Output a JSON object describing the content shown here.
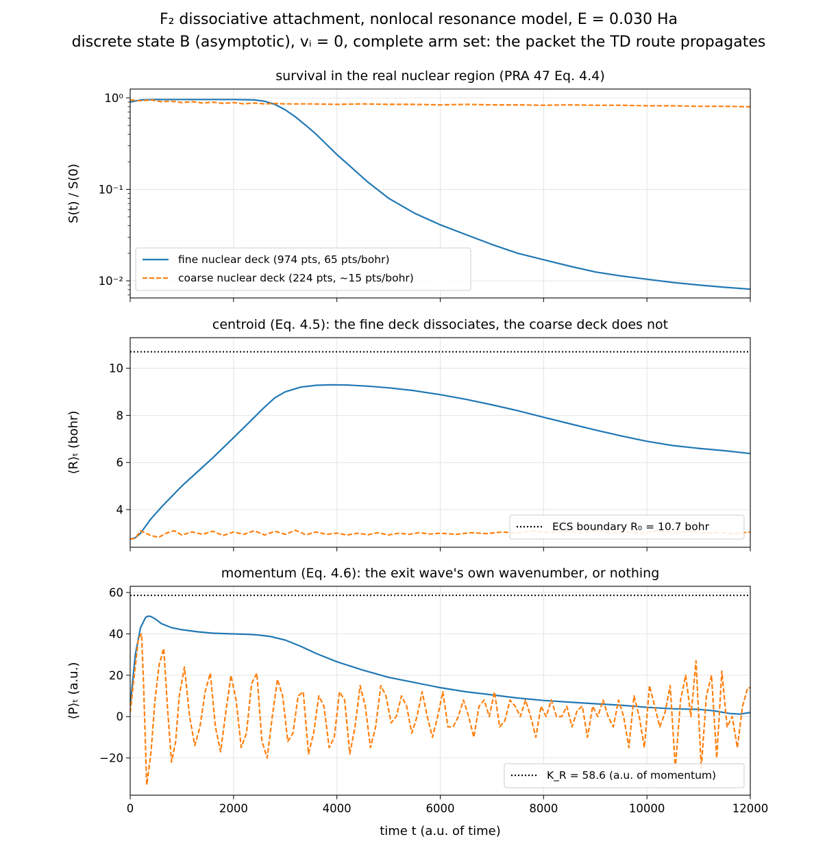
{
  "figure": {
    "title_lines": [
      "F₂ dissociative attachment, nonlocal resonance model, E = 0.030 Ha",
      "discrete state B (asymptotic), vᵢ = 0, complete arm set: the packet the TD route propagates"
    ]
  },
  "chart_data": [
    {
      "type": "line",
      "title": "survival in the real nuclear region (PRA 47 Eq. 4.4)",
      "xlabel": "",
      "ylabel": "S(t) / S(0)",
      "yscale": "log",
      "xlim": [
        0,
        12000
      ],
      "ylim": [
        0.0065,
        1.25
      ],
      "xticks": [
        0,
        2000,
        4000,
        6000,
        8000,
        10000,
        12000
      ],
      "yticks": [
        {
          "value": 1,
          "label": "10⁰"
        },
        {
          "value": 0.1,
          "label": "10⁻¹"
        },
        {
          "value": 0.01,
          "label": "10⁻²"
        }
      ],
      "grid": true,
      "legend": "lower-left",
      "series": [
        {
          "name": "fine nuclear deck (974 pts, 65 pts/bohr)",
          "color": "#1f77b4",
          "style": "solid",
          "x": [
            0,
            200,
            500,
            1000,
            1500,
            2000,
            2400,
            2600,
            2800,
            3000,
            3200,
            3400,
            3600,
            3800,
            4000,
            4300,
            4600,
            5000,
            5500,
            6000,
            6500,
            7000,
            7500,
            8000,
            8500,
            9000,
            9500,
            10000,
            10500,
            11000,
            11500,
            12000
          ],
          "y": [
            0.9,
            0.95,
            0.96,
            0.96,
            0.96,
            0.96,
            0.95,
            0.92,
            0.85,
            0.74,
            0.62,
            0.5,
            0.4,
            0.31,
            0.24,
            0.17,
            0.12,
            0.08,
            0.055,
            0.041,
            0.032,
            0.025,
            0.02,
            0.017,
            0.0145,
            0.0125,
            0.0113,
            0.0104,
            0.0096,
            0.009,
            0.0085,
            0.0081
          ]
        },
        {
          "name": "coarse nuclear deck (224 pts, ~15 pts/bohr)",
          "color": "#ff7f0e",
          "style": "dashed",
          "x": [
            0,
            200,
            400,
            600,
            800,
            1000,
            1200,
            1400,
            1600,
            1800,
            2000,
            2200,
            2400,
            2600,
            2800,
            3000,
            3500,
            4000,
            4500,
            5000,
            5500,
            6000,
            6500,
            7000,
            7500,
            8000,
            8500,
            9000,
            9500,
            10000,
            10500,
            11000,
            11500,
            12000
          ],
          "y": [
            0.95,
            0.93,
            0.95,
            0.91,
            0.92,
            0.89,
            0.91,
            0.88,
            0.9,
            0.87,
            0.89,
            0.86,
            0.88,
            0.86,
            0.87,
            0.86,
            0.86,
            0.85,
            0.86,
            0.85,
            0.85,
            0.84,
            0.85,
            0.84,
            0.84,
            0.83,
            0.84,
            0.83,
            0.83,
            0.82,
            0.82,
            0.81,
            0.81,
            0.8
          ]
        }
      ]
    },
    {
      "type": "line",
      "title": "centroid (Eq. 4.5): the fine deck dissociates, the coarse deck does not",
      "xlabel": "",
      "ylabel": "⟨R⟩ₜ  (bohr)",
      "xlim": [
        0,
        12000
      ],
      "ylim": [
        2.4,
        11.3
      ],
      "xticks": [
        0,
        2000,
        4000,
        6000,
        8000,
        10000,
        12000
      ],
      "yticks": [
        {
          "value": 4,
          "label": "4"
        },
        {
          "value": 6,
          "label": "6"
        },
        {
          "value": 8,
          "label": "8"
        },
        {
          "value": 10,
          "label": "10"
        }
      ],
      "grid": true,
      "legend": "lower-right",
      "series": [
        {
          "name": "",
          "color": "#1f77b4",
          "style": "solid",
          "x": [
            0,
            100,
            200,
            300,
            400,
            600,
            800,
            1000,
            1300,
            1600,
            2000,
            2300,
            2600,
            2800,
            3000,
            3300,
            3600,
            3900,
            4200,
            4600,
            5000,
            5500,
            6000,
            6500,
            7000,
            7500,
            8000,
            8500,
            9000,
            9500,
            10000,
            10500,
            11000,
            11500,
            12000
          ],
          "y": [
            2.75,
            2.8,
            3.0,
            3.3,
            3.6,
            4.1,
            4.55,
            5.0,
            5.6,
            6.2,
            7.05,
            7.7,
            8.35,
            8.75,
            9.0,
            9.2,
            9.28,
            9.3,
            9.29,
            9.24,
            9.17,
            9.05,
            8.88,
            8.68,
            8.45,
            8.2,
            7.92,
            7.65,
            7.38,
            7.13,
            6.9,
            6.72,
            6.6,
            6.5,
            6.38
          ]
        },
        {
          "name": "",
          "color": "#ff7f0e",
          "style": "dashed",
          "x": [
            0,
            100,
            200,
            300,
            400,
            550,
            700,
            850,
            1000,
            1200,
            1400,
            1600,
            1800,
            2000,
            2200,
            2400,
            2600,
            2800,
            3000,
            3200,
            3400,
            3600,
            3800,
            4000,
            4200,
            4400,
            4600,
            4800,
            5000,
            5200,
            5400,
            5600,
            5800,
            6000,
            6300,
            6600,
            6900,
            7200,
            7500,
            7800,
            8100,
            8400,
            8700,
            9000,
            9300,
            9600,
            9900,
            10200,
            10500,
            10800,
            11100,
            11400,
            11700,
            12000
          ],
          "y": [
            2.75,
            2.78,
            3.1,
            3.0,
            2.9,
            2.82,
            3.0,
            3.1,
            2.92,
            3.05,
            2.95,
            3.08,
            2.9,
            3.05,
            2.95,
            3.1,
            2.92,
            3.08,
            2.95,
            3.12,
            2.93,
            3.05,
            2.95,
            3.0,
            2.92,
            3.0,
            2.93,
            3.02,
            2.92,
            3.0,
            2.95,
            3.02,
            2.96,
            3.0,
            2.95,
            3.02,
            2.98,
            3.05,
            3.0,
            3.1,
            3.02,
            3.08,
            3.0,
            3.1,
            3.02,
            3.05,
            2.98,
            3.1,
            3.0,
            3.08,
            3.0,
            3.02,
            2.98,
            3.05
          ]
        },
        {
          "name": "ECS boundary R₀ = 10.7 bohr",
          "color": "#000000",
          "style": "dotted",
          "x": [
            0,
            12000
          ],
          "y": [
            10.7,
            10.7
          ]
        }
      ]
    },
    {
      "type": "line",
      "title": "momentum (Eq. 4.6): the exit wave's own wavenumber, or nothing",
      "xlabel": "time  t  (a.u. of time)",
      "ylabel": "⟨P⟩ₜ  (a.u.)",
      "xlim": [
        0,
        12000
      ],
      "ylim": [
        -38,
        63
      ],
      "xticks": [
        0,
        2000,
        4000,
        6000,
        8000,
        10000,
        12000
      ],
      "yticks": [
        {
          "value": -20,
          "label": "−20"
        },
        {
          "value": 0,
          "label": "0"
        },
        {
          "value": 20,
          "label": "20"
        },
        {
          "value": 40,
          "label": "40"
        },
        {
          "value": 60,
          "label": "60"
        }
      ],
      "grid": true,
      "legend": "lower-right",
      "series": [
        {
          "name": "",
          "color": "#1f77b4",
          "style": "solid",
          "x": [
            0,
            100,
            200,
            300,
            350,
            400,
            500,
            600,
            800,
            1000,
            1300,
            1600,
            2000,
            2300,
            2500,
            2700,
            3000,
            3300,
            3600,
            4000,
            4500,
            5000,
            5500,
            6000,
            6500,
            7000,
            7500,
            8000,
            8500,
            9000,
            9500,
            10000,
            10500,
            11000,
            11300,
            11600,
            11800,
            12000
          ],
          "y": [
            5,
            30,
            43,
            48,
            48.6,
            48.4,
            47,
            45,
            43,
            42,
            41,
            40.3,
            40,
            39.8,
            39.4,
            38.8,
            37,
            34,
            30.5,
            26.5,
            22.5,
            19,
            16.5,
            14,
            12,
            10.5,
            9,
            7.8,
            7,
            6.2,
            5.5,
            4.5,
            3.8,
            3.5,
            2.8,
            1.5,
            1.2,
            2
          ]
        },
        {
          "name": "",
          "color": "#ff7f0e",
          "style": "dashed",
          "x": [
            0,
            80,
            160,
            220,
            260,
            320,
            400,
            480,
            560,
            650,
            720,
            800,
            880,
            950,
            1050,
            1150,
            1250,
            1350,
            1450,
            1550,
            1650,
            1750,
            1850,
            1950,
            2050,
            2150,
            2250,
            2350,
            2450,
            2550,
            2650,
            2750,
            2850,
            2950,
            3050,
            3150,
            3250,
            3350,
            3450,
            3550,
            3650,
            3750,
            3850,
            3950,
            4050,
            4150,
            4250,
            4350,
            4450,
            4550,
            4650,
            4750,
            4850,
            4950,
            5050,
            5150,
            5250,
            5350,
            5450,
            5550,
            5650,
            5750,
            5850,
            5950,
            6050,
            6150,
            6250,
            6350,
            6450,
            6550,
            6650,
            6750,
            6850,
            6950,
            7050,
            7150,
            7250,
            7350,
            7450,
            7550,
            7650,
            7750,
            7850,
            7950,
            8050,
            8150,
            8250,
            8350,
            8450,
            8550,
            8650,
            8750,
            8850,
            8950,
            9050,
            9150,
            9250,
            9350,
            9450,
            9550,
            9650,
            9750,
            9850,
            9950,
            10050,
            10150,
            10250,
            10350,
            10450,
            10550,
            10650,
            10750,
            10850,
            10950,
            11050,
            11150,
            11250,
            11350,
            11450,
            11550,
            11650,
            11750,
            11850,
            11950,
            12000
          ],
          "y": [
            2,
            20,
            38,
            40,
            15,
            -33,
            -18,
            8,
            25,
            33,
            5,
            -22,
            -12,
            10,
            24,
            0,
            -14,
            -5,
            12,
            21,
            -5,
            -17,
            2,
            20,
            8,
            -15,
            -8,
            16,
            21,
            -12,
            -20,
            0,
            18,
            10,
            -12,
            -8,
            10,
            12,
            -18,
            -8,
            10,
            5,
            -15,
            -10,
            12,
            8,
            -18,
            -5,
            15,
            5,
            -15,
            -5,
            15,
            10,
            -3,
            0,
            10,
            5,
            -8,
            0,
            12,
            0,
            -10,
            0,
            12,
            -5,
            -5,
            0,
            8,
            0,
            -10,
            5,
            8,
            0,
            12,
            -5,
            -2,
            8,
            5,
            0,
            8,
            0,
            -10,
            5,
            0,
            8,
            0,
            0,
            5,
            -5,
            3,
            5,
            -10,
            5,
            0,
            8,
            0,
            -5,
            8,
            0,
            -15,
            10,
            0,
            -15,
            15,
            5,
            -5,
            2,
            15,
            -25,
            8,
            20,
            0,
            27,
            -25,
            10,
            20,
            -20,
            22,
            -5,
            0,
            -15,
            5,
            14,
            14
          ]
        },
        {
          "name": "K_R = 58.6 (a.u. of momentum)",
          "color": "#000000",
          "style": "dotted",
          "x": [
            0,
            12000
          ],
          "y": [
            58.6,
            58.6
          ]
        }
      ]
    }
  ]
}
